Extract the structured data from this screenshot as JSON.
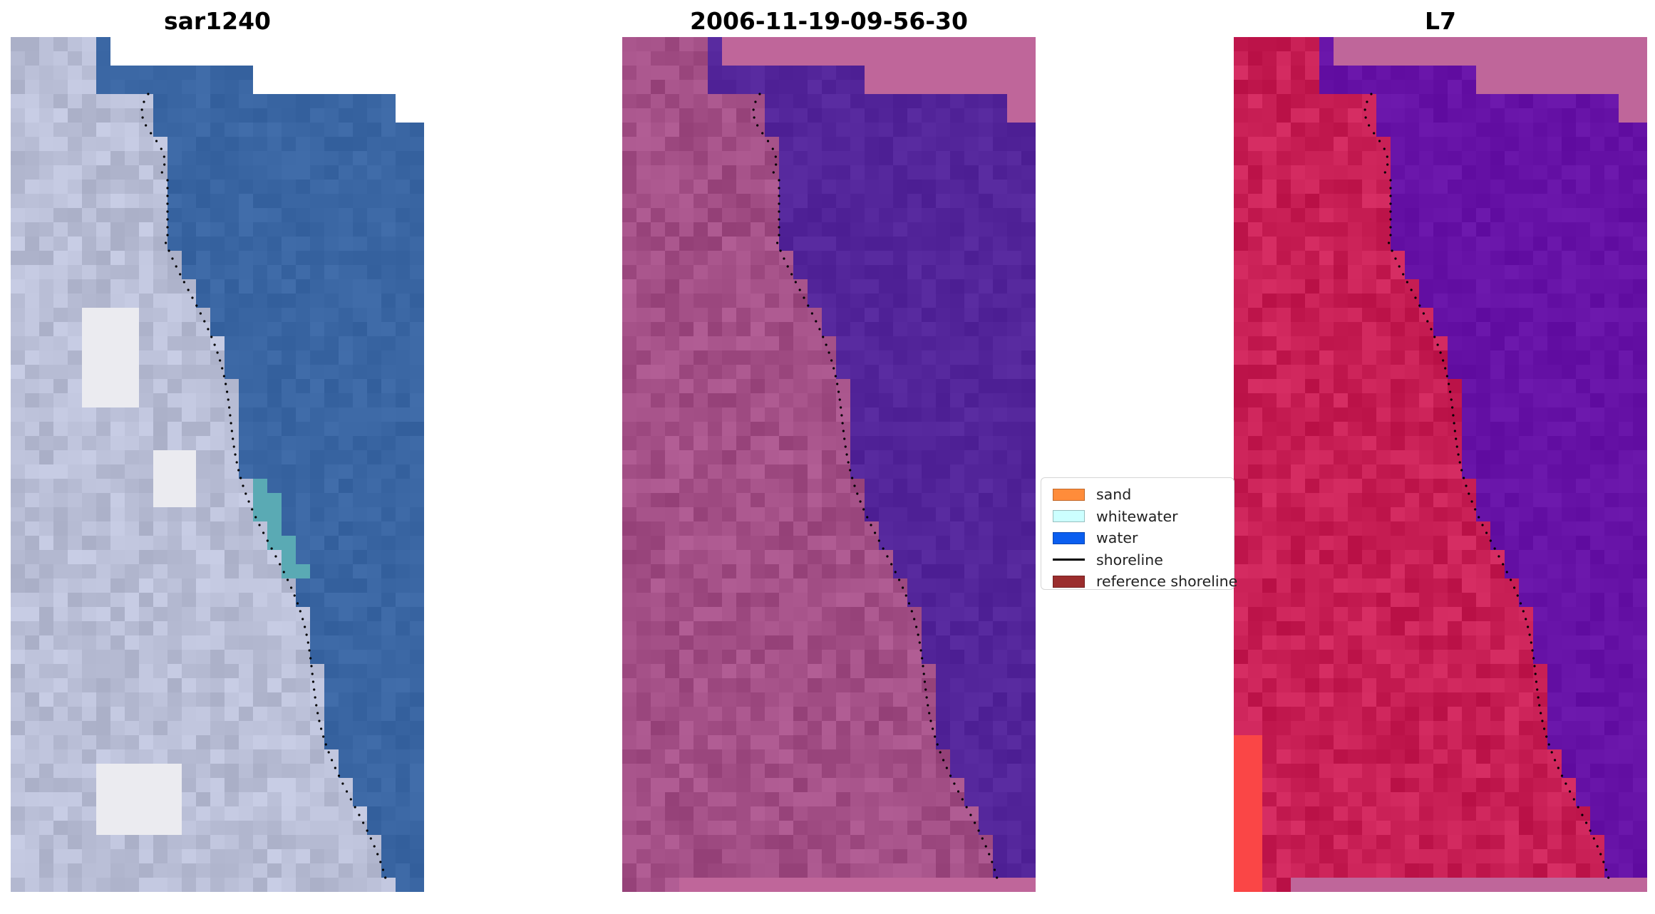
{
  "panels": [
    {
      "title": "sar1240",
      "style": "rgb"
    },
    {
      "title": "2006-11-19-09-56-30",
      "style": "classified"
    },
    {
      "title": "L7",
      "style": "index"
    }
  ],
  "legend": {
    "items": [
      {
        "label": "sand",
        "color": "#ff8c3a",
        "kind": "patch"
      },
      {
        "label": "whitewater",
        "color": "#ccffff",
        "kind": "patch"
      },
      {
        "label": "water",
        "color": "#0a5ef0",
        "kind": "patch"
      },
      {
        "label": "shoreline",
        "color": "#000000",
        "kind": "line"
      },
      {
        "label": "reference shoreline",
        "color": "#9b2d2d",
        "kind": "patch"
      }
    ]
  },
  "colors": {
    "rgb_land": "#b9bed6",
    "rgb_water": "#3a66a3",
    "classified_land": "#a34f86",
    "classified_water": "#53259a",
    "index_land": "#c81f55",
    "index_water": "#6612a6",
    "nodata": "#bf669a",
    "shoreline_dots": "#000000"
  }
}
